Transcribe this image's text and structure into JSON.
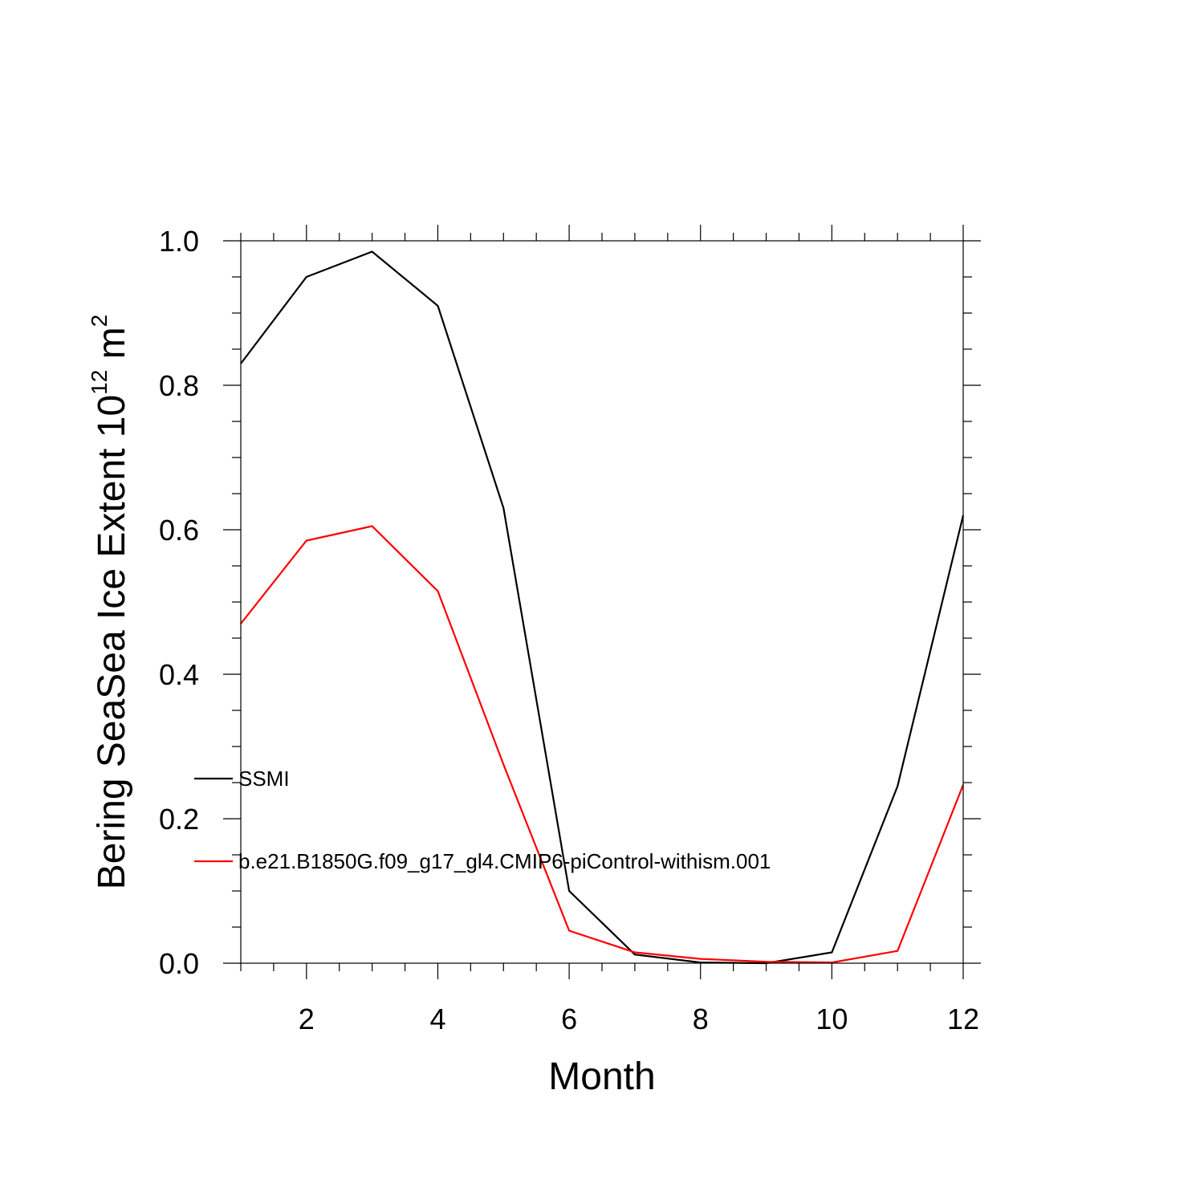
{
  "chart_data": {
    "type": "line",
    "title": "",
    "xlabel": "Month",
    "ylabel": {
      "text": "Bering SeaSea Ice Extent 10",
      "exponent_1": "12",
      "unit": " m",
      "exponent_2": "2"
    },
    "xlim": [
      1,
      12
    ],
    "ylim": [
      0.0,
      1.0
    ],
    "x_ticks": [
      2,
      4,
      6,
      8,
      10,
      12
    ],
    "y_ticks": [
      "0.0",
      "0.2",
      "0.4",
      "0.6",
      "0.8",
      "1.0"
    ],
    "grid": false,
    "legend_position": "left",
    "x": [
      1,
      2,
      3,
      4,
      5,
      6,
      7,
      8,
      9,
      10,
      11,
      12
    ],
    "series": [
      {
        "name": "SSMI",
        "color": "#000000",
        "values": [
          0.83,
          0.95,
          0.985,
          0.91,
          0.63,
          0.1,
          0.012,
          0.001,
          0.0,
          0.015,
          0.245,
          0.62
        ]
      },
      {
        "name": "b.e21.B1850G.f09_g17_gl4.CMIP6-piControl-withism.001",
        "color": "#ff0000",
        "values": [
          0.47,
          0.585,
          0.605,
          0.515,
          0.275,
          0.045,
          0.015,
          0.006,
          0.002,
          0.001,
          0.017,
          0.247
        ]
      }
    ]
  }
}
